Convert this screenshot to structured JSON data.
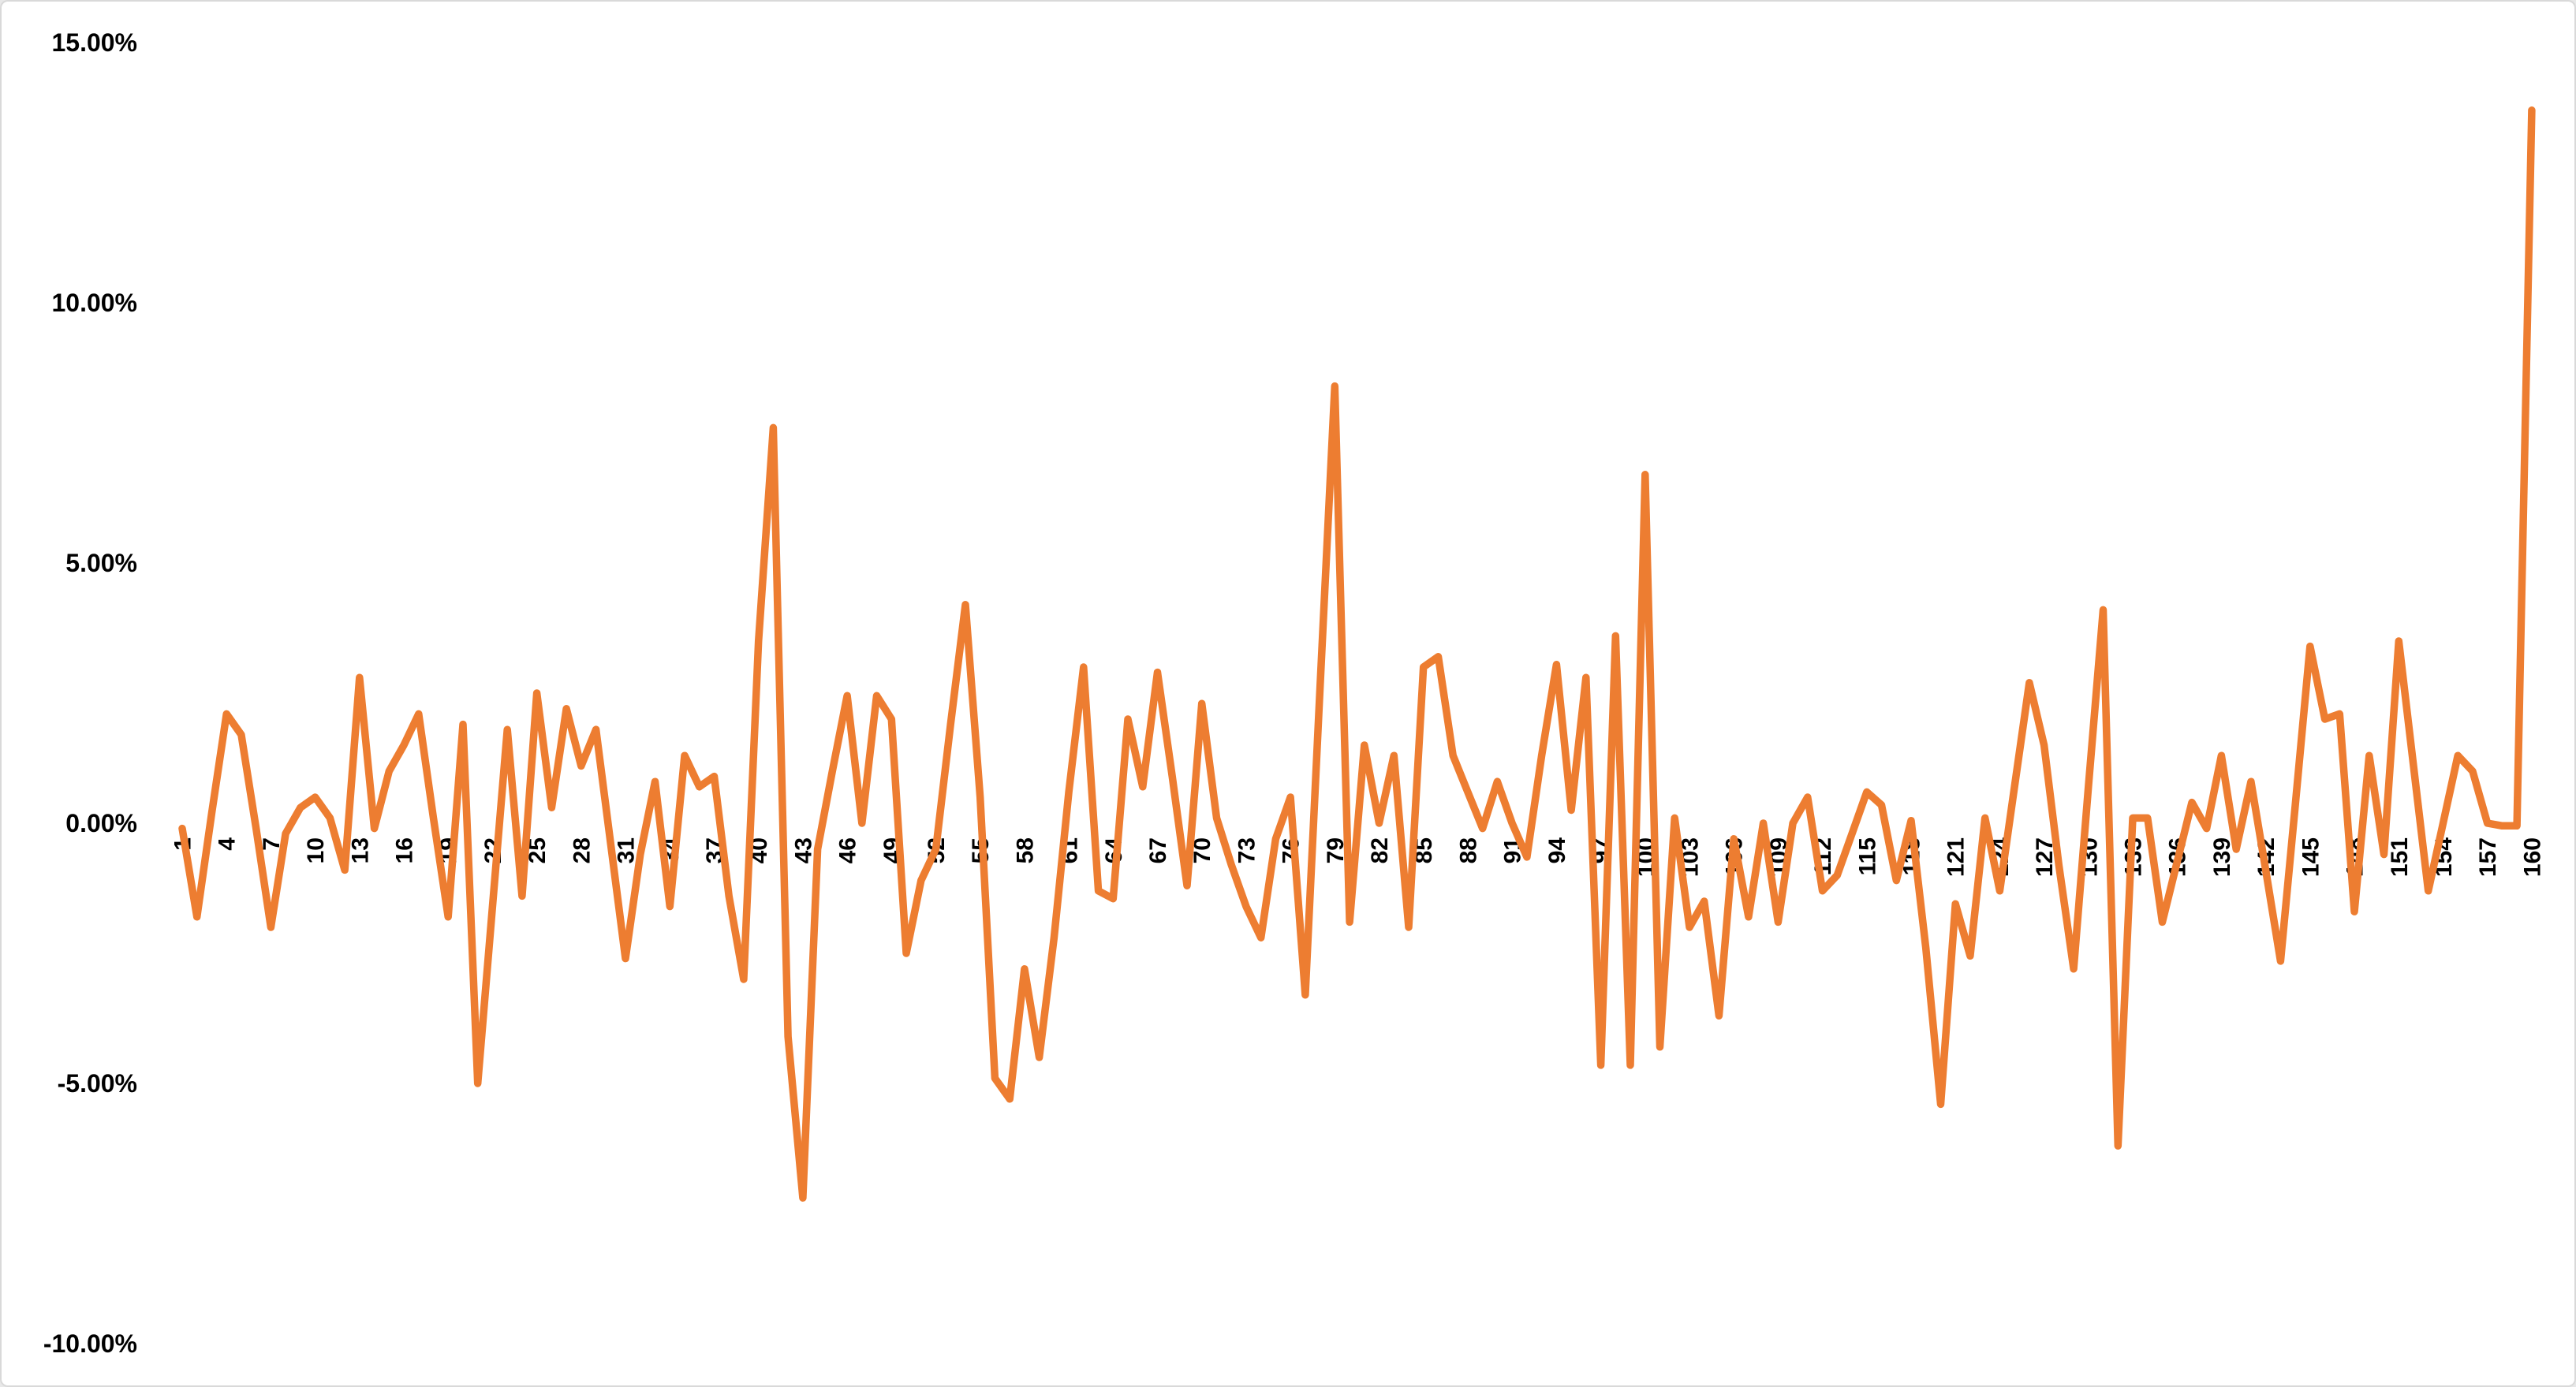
{
  "chart_data": {
    "type": "line",
    "title": "",
    "xlabel": "",
    "ylabel": "",
    "legend": "none",
    "grid": "off",
    "line_color": "#ED7D31",
    "background_color": "#FFFFFF",
    "border_color": "#D9D9D9",
    "text_color": "#000000",
    "ylim": [
      -10,
      15
    ],
    "xlim": [
      1,
      160
    ],
    "y_ticks": [
      {
        "label": "15.00%",
        "value": 15
      },
      {
        "label": "10.00%",
        "value": 10
      },
      {
        "label": "5.00%",
        "value": 5
      },
      {
        "label": "0.00%",
        "value": 0
      },
      {
        "label": "-5.00%",
        "value": -5
      },
      {
        "label": "-10.00%",
        "value": -10
      }
    ],
    "x_tick_labels": [
      "1",
      "4",
      "7",
      "10",
      "13",
      "16",
      "19",
      "22",
      "25",
      "28",
      "31",
      "34",
      "37",
      "40",
      "43",
      "46",
      "49",
      "52",
      "55",
      "58",
      "61",
      "64",
      "67",
      "70",
      "73",
      "76",
      "79",
      "82",
      "85",
      "88",
      "91",
      "94",
      "97",
      "100",
      "103",
      "106",
      "109",
      "112",
      "115",
      "118",
      "121",
      "124",
      "127",
      "130",
      "133",
      "136",
      "139",
      "142",
      "145",
      "148",
      "151",
      "154",
      "157",
      "160"
    ],
    "x": [
      1,
      2,
      3,
      4,
      5,
      6,
      7,
      8,
      9,
      10,
      11,
      12,
      13,
      14,
      15,
      16,
      17,
      18,
      19,
      20,
      21,
      22,
      23,
      24,
      25,
      26,
      27,
      28,
      29,
      30,
      31,
      32,
      33,
      34,
      35,
      36,
      37,
      38,
      39,
      40,
      41,
      42,
      43,
      44,
      45,
      46,
      47,
      48,
      49,
      50,
      51,
      52,
      53,
      54,
      55,
      56,
      57,
      58,
      59,
      60,
      61,
      62,
      63,
      64,
      65,
      66,
      67,
      68,
      69,
      70,
      71,
      72,
      73,
      74,
      75,
      76,
      77,
      78,
      79,
      80,
      81,
      82,
      83,
      84,
      85,
      86,
      87,
      88,
      89,
      90,
      91,
      92,
      93,
      94,
      95,
      96,
      97,
      98,
      99,
      100,
      101,
      102,
      103,
      104,
      105,
      106,
      107,
      108,
      109,
      110,
      111,
      112,
      113,
      114,
      115,
      116,
      117,
      118,
      119,
      120,
      121,
      122,
      123,
      124,
      125,
      126,
      127,
      128,
      129,
      130,
      131,
      132,
      133,
      134,
      135,
      136,
      137,
      138,
      139,
      140,
      141,
      142,
      143,
      144,
      145,
      146,
      147,
      148,
      149,
      150,
      151,
      152,
      153,
      154,
      155,
      156,
      157,
      158,
      159,
      160
    ],
    "values_percent": [
      -0.1,
      -1.8,
      0.2,
      2.1,
      1.7,
      -0.1,
      -2.0,
      -0.2,
      0.3,
      0.5,
      0.1,
      -0.9,
      2.8,
      -0.1,
      1.0,
      1.5,
      2.1,
      0.1,
      -1.8,
      1.9,
      -5.0,
      -1.6,
      1.8,
      -1.4,
      2.5,
      0.3,
      2.2,
      1.1,
      1.8,
      -0.4,
      -2.6,
      -0.6,
      0.8,
      -1.6,
      1.3,
      0.7,
      0.9,
      -1.4,
      -3.0,
      3.5,
      7.6,
      -4.1,
      -7.2,
      -0.5,
      1.0,
      2.45,
      0.0,
      2.45,
      2.0,
      -2.5,
      -1.1,
      -0.5,
      1.9,
      4.2,
      0.5,
      -4.9,
      -5.3,
      -2.8,
      -4.5,
      -2.2,
      0.6,
      3.0,
      -1.3,
      -1.45,
      2.0,
      0.7,
      2.9,
      0.9,
      -1.2,
      2.3,
      0.1,
      -0.8,
      -1.6,
      -2.2,
      -0.3,
      0.5,
      -3.3,
      2.6,
      8.4,
      -1.9,
      1.5,
      0.0,
      1.3,
      -2.0,
      3.0,
      3.2,
      1.3,
      0.6,
      -0.1,
      0.8,
      0.0,
      -0.65,
      1.3,
      3.05,
      0.25,
      2.8,
      -4.65,
      3.6,
      -4.65,
      6.7,
      -4.3,
      0.1,
      -2.0,
      -1.5,
      -3.7,
      -0.3,
      -1.8,
      0.0,
      -1.9,
      0.0,
      0.5,
      -1.3,
      -1.0,
      -0.2,
      0.6,
      0.35,
      -1.1,
      0.05,
      -2.4,
      -5.4,
      -1.55,
      -2.55,
      0.1,
      -1.3,
      0.7,
      2.7,
      1.5,
      -0.8,
      -2.8,
      0.7,
      4.1,
      -6.2,
      0.1,
      0.1,
      -1.9,
      -0.75,
      0.4,
      -0.1,
      1.3,
      -0.5,
      0.8,
      -0.9,
      -2.65,
      0.35,
      3.4,
      2.0,
      2.1,
      -1.7,
      1.3,
      -0.6,
      3.5,
      1.1,
      -1.3,
      0.0,
      1.3,
      1.0,
      0.0,
      -0.05,
      -0.05,
      13.7
    ]
  }
}
